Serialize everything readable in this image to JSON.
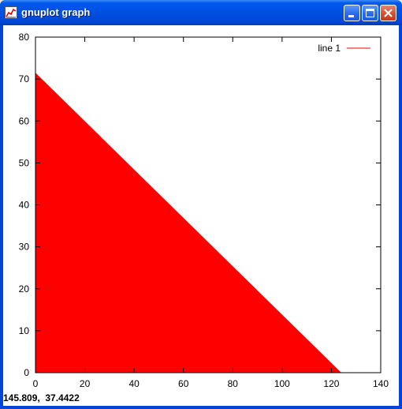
{
  "window": {
    "title": "gnuplot graph",
    "icon": "gnuplot-app-icon",
    "controls": [
      "minimize-icon",
      "maximize-icon",
      "close-icon"
    ]
  },
  "status_bar": {
    "coordinates": "145.809,  37.4422"
  },
  "chart_data": {
    "type": "area",
    "x": [
      0,
      124
    ],
    "series": [
      {
        "name": "line 1",
        "values": [
          71.5,
          0
        ],
        "color": "#ff0000"
      }
    ],
    "xlim": [
      0,
      140
    ],
    "ylim": [
      0,
      80
    ],
    "x_ticks": [
      0,
      20,
      40,
      60,
      80,
      100,
      120,
      140
    ],
    "y_ticks": [
      0,
      10,
      20,
      30,
      40,
      50,
      60,
      70,
      80
    ],
    "x_tick_labels": [
      "0",
      "20",
      "40",
      "60",
      "80",
      "100",
      "120",
      "140"
    ],
    "y_tick_labels": [
      "0",
      "10",
      "20",
      "30",
      "40",
      "50",
      "60",
      "70",
      "80"
    ],
    "grid": false,
    "legend": "top-right",
    "title": "",
    "xlabel": "",
    "ylabel": ""
  }
}
